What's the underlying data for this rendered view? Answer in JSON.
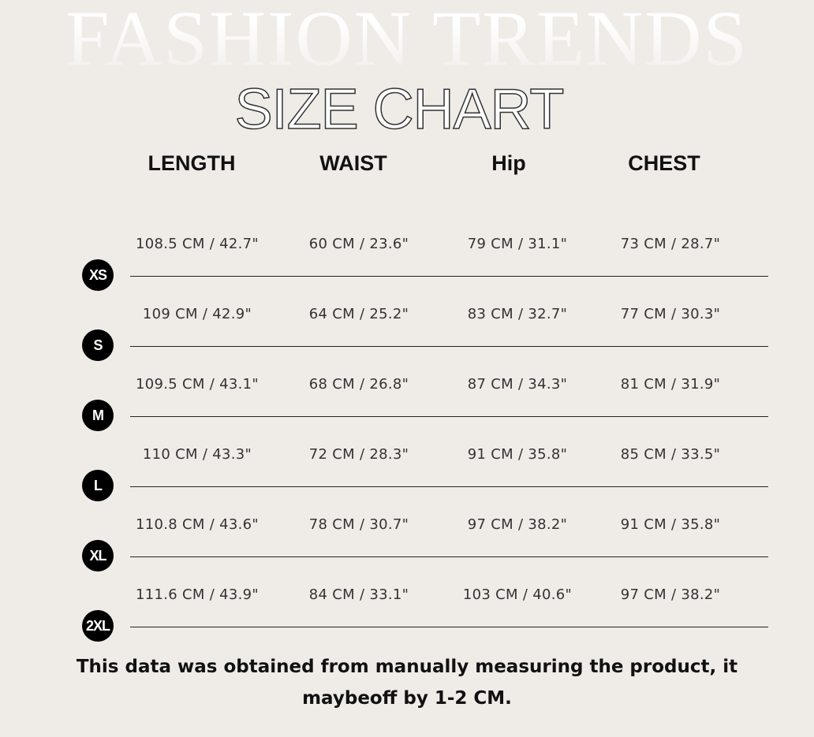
{
  "background_title": "FASHION TRENDS",
  "title": "SIZE CHART",
  "headers": [
    "LENGTH",
    "WAIST",
    "Hip",
    "CHEST"
  ],
  "rows": [
    {
      "size": "XS",
      "length": "108.5 CM / 42.7\"",
      "waist": "60 CM / 23.6\"",
      "hip": "79 CM / 31.1\"",
      "chest": "73 CM / 28.7\""
    },
    {
      "size": "S",
      "length": "109 CM / 42.9\"",
      "waist": "64 CM / 25.2\"",
      "hip": "83 CM / 32.7\"",
      "chest": "77 CM / 30.3\""
    },
    {
      "size": "M",
      "length": "109.5 CM / 43.1\"",
      "waist": "68 CM / 26.8\"",
      "hip": "87 CM / 34.3\"",
      "chest": "81 CM / 31.9\""
    },
    {
      "size": "L",
      "length": "110 CM / 43.3\"",
      "waist": "72 CM / 28.3\"",
      "hip": "91 CM / 35.8\"",
      "chest": "85 CM / 33.5\""
    },
    {
      "size": "XL",
      "length": "110.8 CM / 43.6\"",
      "waist": "78 CM / 30.7\"",
      "hip": "97 CM / 38.2\"",
      "chest": "91 CM / 35.8\""
    },
    {
      "size": "2XL",
      "length": "111.6 CM / 43.9\"",
      "waist": "84 CM / 33.1\"",
      "hip": "103 CM / 40.6\"",
      "chest": "97 CM / 38.2\""
    }
  ],
  "note": "This data was obtained from manually measuring the product, it maybeoff by 1-2 CM.",
  "colors": {
    "background": "#efece8",
    "text": "#222222",
    "badge": "#000000"
  }
}
